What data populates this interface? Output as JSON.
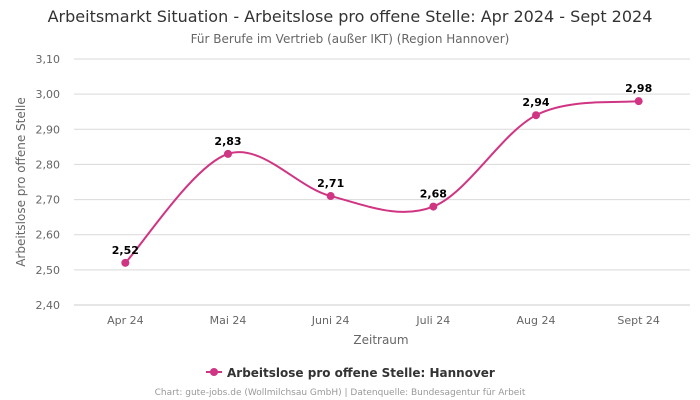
{
  "chart_data": {
    "type": "line",
    "title": "Arbeitsmarkt Situation - Arbeitslose pro offene Stelle: Apr 2024 - Sept 2024",
    "subtitle": "Für Berufe im Vertrieb (außer IKT) (Region Hannover)",
    "xlabel": "Zeitraum",
    "ylabel": "Arbeitslose pro offene Stelle",
    "categories": [
      "Apr 24",
      "Mai 24",
      "Juni 24",
      "Juli 24",
      "Aug 24",
      "Sept 24"
    ],
    "series": [
      {
        "name": "Arbeitslose pro offene Stelle: Hannover",
        "values": [
          2.52,
          2.83,
          2.71,
          2.68,
          2.94,
          2.98
        ],
        "labels": [
          "2,52",
          "2,83",
          "2,71",
          "2,68",
          "2,94",
          "2,98"
        ],
        "color": "#d03583"
      }
    ],
    "ylim": [
      2.4,
      3.1
    ],
    "yticks": [
      2.4,
      2.5,
      2.6,
      2.7,
      2.8,
      2.9,
      3.0,
      3.1
    ],
    "ytick_labels": [
      "2,40",
      "2,50",
      "2,60",
      "2,70",
      "2,80",
      "2,90",
      "3,00",
      "3,10"
    ],
    "grid": true,
    "legend_position": "bottom-center",
    "credits": "Chart: gute-jobs.de (Wollmilchsau GmbH) | Datenquelle: Bundesagentur für Arbeit"
  }
}
